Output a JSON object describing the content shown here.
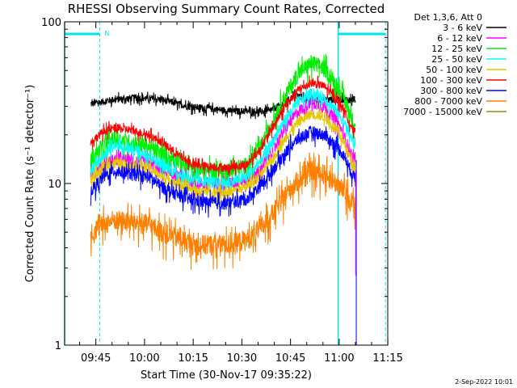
{
  "chart_data": {
    "type": "line",
    "title": "RHESSI Observing Summary Count Rates, Corrected",
    "xlabel": "Start Time (30-Nov-17 09:35:22)",
    "ylabel": "Corrected Count Rate (s⁻¹ detector⁻¹)",
    "yscale": "log",
    "ylim": [
      1,
      100
    ],
    "xlim_minutes": [
      0,
      99.6
    ],
    "y_ticks": [
      {
        "value": 1,
        "label": "1"
      },
      {
        "value": 10,
        "label": "10"
      },
      {
        "value": 100,
        "label": "100"
      }
    ],
    "x_ticks": [
      {
        "minute": 9.63,
        "label": "09:45"
      },
      {
        "minute": 24.63,
        "label": "10:00"
      },
      {
        "minute": 39.63,
        "label": "10:15"
      },
      {
        "minute": 54.63,
        "label": "10:30"
      },
      {
        "minute": 69.63,
        "label": "10:45"
      },
      {
        "minute": 84.63,
        "label": "11:00"
      },
      {
        "minute": 99.63,
        "label": "11:15"
      }
    ],
    "legend": {
      "header": "Det 1,3,6, Att 0",
      "position": "top-right",
      "entries": [
        {
          "label": "3 - 6 keV",
          "color": "#000000"
        },
        {
          "label": "6 - 12 keV",
          "color": "#ff00ff"
        },
        {
          "label": "12 - 25 keV",
          "color": "#00ee00"
        },
        {
          "label": "25 - 50 keV",
          "color": "#00ffff"
        },
        {
          "label": "50 - 100 keV",
          "color": "#e6c800"
        },
        {
          "label": "100 - 300 keV",
          "color": "#ff0000"
        },
        {
          "label": "300 - 800 keV",
          "color": "#0000ff"
        },
        {
          "label": "800 - 7000 keV",
          "color": "#ff8000"
        },
        {
          "label": "7000 - 15000 keV",
          "color": "#909000"
        }
      ]
    },
    "data_window_minutes": [
      8,
      89.6
    ],
    "series": [
      {
        "name": "3 - 6 keV",
        "color": "#000000",
        "noise": 0.05,
        "points": [
          [
            8,
            31
          ],
          [
            15,
            33
          ],
          [
            22,
            34
          ],
          [
            30,
            33
          ],
          [
            38,
            30
          ],
          [
            45,
            29
          ],
          [
            52,
            28
          ],
          [
            58,
            28
          ],
          [
            63,
            28
          ],
          [
            67,
            31
          ],
          [
            71,
            35
          ],
          [
            75,
            34
          ],
          [
            78,
            33
          ],
          [
            80,
            33
          ]
        ]
      },
      {
        "name": "6 - 12 keV",
        "color": "#ff00ff",
        "noise": 0.09,
        "points": [
          [
            8,
            11
          ],
          [
            12,
            13
          ],
          [
            15,
            14
          ],
          [
            20,
            14
          ],
          [
            26,
            13.5
          ],
          [
            30,
            12
          ],
          [
            35,
            11
          ],
          [
            40,
            10
          ],
          [
            50,
            10
          ],
          [
            56,
            10.5
          ],
          [
            60,
            12
          ],
          [
            64,
            16
          ],
          [
            68,
            22
          ],
          [
            72,
            28
          ],
          [
            76,
            32
          ],
          [
            80,
            30
          ],
          [
            84,
            24
          ],
          [
            86,
            20
          ],
          [
            89,
            14
          ]
        ]
      },
      {
        "name": "12 - 25 keV",
        "color": "#00ee00",
        "noise": 0.12,
        "points": [
          [
            8,
            14
          ],
          [
            12,
            17
          ],
          [
            15,
            19
          ],
          [
            20,
            18
          ],
          [
            26,
            17
          ],
          [
            30,
            15
          ],
          [
            35,
            14
          ],
          [
            40,
            12
          ],
          [
            50,
            12
          ],
          [
            56,
            13
          ],
          [
            60,
            16
          ],
          [
            64,
            24
          ],
          [
            68,
            35
          ],
          [
            72,
            48
          ],
          [
            76,
            56
          ],
          [
            80,
            52
          ],
          [
            84,
            40
          ],
          [
            86,
            34
          ],
          [
            89,
            24
          ]
        ]
      },
      {
        "name": "25 - 50 keV",
        "color": "#00ffff",
        "noise": 0.08,
        "points": [
          [
            8,
            12
          ],
          [
            12,
            15
          ],
          [
            15,
            17
          ],
          [
            20,
            16.5
          ],
          [
            26,
            15
          ],
          [
            30,
            13
          ],
          [
            35,
            11.5
          ],
          [
            40,
            10.5
          ],
          [
            50,
            10
          ],
          [
            56,
            11
          ],
          [
            60,
            13.5
          ],
          [
            64,
            18
          ],
          [
            68,
            25
          ],
          [
            72,
            32
          ],
          [
            76,
            36
          ],
          [
            80,
            34
          ],
          [
            84,
            28
          ],
          [
            86,
            24
          ],
          [
            89,
            18
          ]
        ]
      },
      {
        "name": "50 - 100 keV",
        "color": "#e6c800",
        "noise": 0.07,
        "points": [
          [
            8,
            10.5
          ],
          [
            12,
            12.5
          ],
          [
            15,
            13.5
          ],
          [
            20,
            13
          ],
          [
            26,
            12.5
          ],
          [
            30,
            11
          ],
          [
            35,
            10
          ],
          [
            40,
            9
          ],
          [
            50,
            8.8
          ],
          [
            56,
            9.5
          ],
          [
            60,
            11
          ],
          [
            64,
            14
          ],
          [
            68,
            19
          ],
          [
            72,
            24
          ],
          [
            76,
            27
          ],
          [
            80,
            26
          ],
          [
            84,
            21
          ],
          [
            86,
            18
          ],
          [
            89,
            13
          ]
        ]
      },
      {
        "name": "100 - 300 keV",
        "color": "#ff0000",
        "noise": 0.06,
        "points": [
          [
            8,
            18
          ],
          [
            12,
            21
          ],
          [
            15,
            22
          ],
          [
            20,
            21.5
          ],
          [
            26,
            20
          ],
          [
            30,
            18
          ],
          [
            35,
            15
          ],
          [
            40,
            13
          ],
          [
            50,
            12.5
          ],
          [
            56,
            13
          ],
          [
            60,
            16
          ],
          [
            64,
            22
          ],
          [
            68,
            30
          ],
          [
            72,
            38
          ],
          [
            76,
            42
          ],
          [
            80,
            40
          ],
          [
            84,
            33
          ],
          [
            86,
            29
          ],
          [
            89,
            21
          ]
        ]
      },
      {
        "name": "300 - 800 keV",
        "color": "#0000ff",
        "noise": 0.09,
        "points": [
          [
            8,
            9
          ],
          [
            12,
            11
          ],
          [
            15,
            12
          ],
          [
            20,
            11.5
          ],
          [
            26,
            11
          ],
          [
            30,
            9.5
          ],
          [
            35,
            8.5
          ],
          [
            40,
            7.8
          ],
          [
            50,
            7.5
          ],
          [
            56,
            8
          ],
          [
            60,
            9.5
          ],
          [
            64,
            12
          ],
          [
            68,
            15.5
          ],
          [
            72,
            19
          ],
          [
            76,
            21
          ],
          [
            80,
            20
          ],
          [
            84,
            17
          ],
          [
            86,
            15
          ],
          [
            89,
            11
          ]
        ]
      },
      {
        "name": "800 - 7000 keV",
        "color": "#ff8000",
        "noise": 0.15,
        "points": [
          [
            8,
            5
          ],
          [
            12,
            5.6
          ],
          [
            15,
            6
          ],
          [
            20,
            5.8
          ],
          [
            26,
            5.6
          ],
          [
            30,
            5
          ],
          [
            35,
            4.6
          ],
          [
            40,
            4.2
          ],
          [
            50,
            4.2
          ],
          [
            56,
            4.5
          ],
          [
            60,
            5.2
          ],
          [
            64,
            6.5
          ],
          [
            68,
            8.5
          ],
          [
            72,
            10.5
          ],
          [
            76,
            12
          ],
          [
            80,
            11.5
          ],
          [
            84,
            10
          ],
          [
            86,
            9
          ],
          [
            89,
            7.5
          ]
        ]
      }
    ],
    "shaded_flags": {
      "color": "#00e5ee",
      "intervals_minutes": [
        [
          0,
          10.8
        ],
        [
          84.3,
          98.9
        ]
      ],
      "marker_text": "N"
    },
    "footer_date": "2-Sep-2022 10:01"
  }
}
